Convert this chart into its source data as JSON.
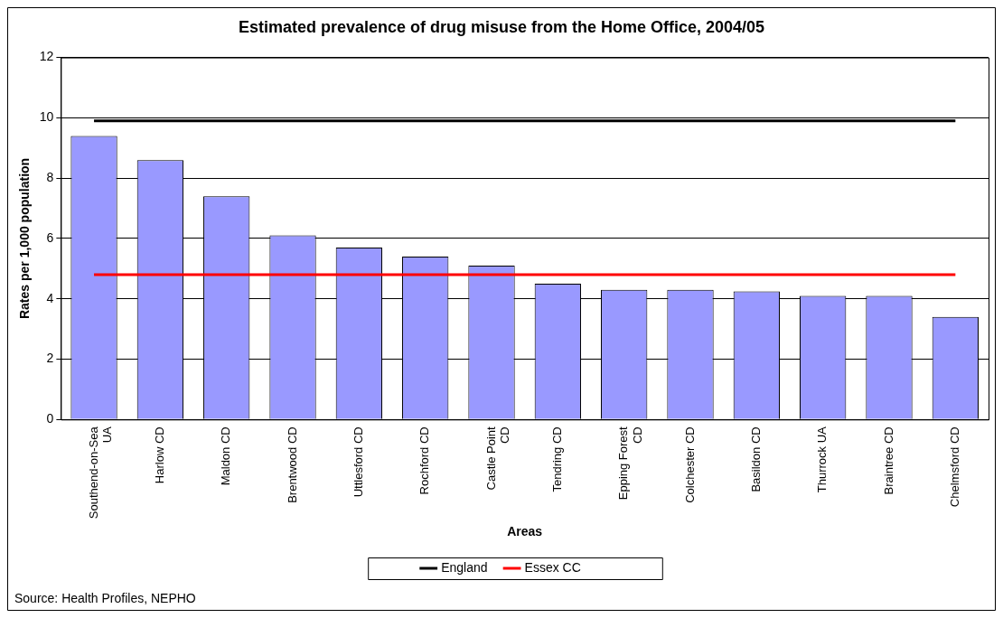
{
  "chart_data": {
    "type": "bar",
    "title": "Estimated prevalence of drug misuse from the Home Office, 2004/05",
    "xlabel": "Areas",
    "ylabel": "Rates per 1,000 population",
    "categories": [
      "Southend-on-Sea UA",
      "Harlow CD",
      "Maldon CD",
      "Brentwood CD",
      "Uttlesford CD",
      "Rochford CD",
      "Castle Point CD",
      "Tendring CD",
      "Epping Forest CD",
      "Colchester CD",
      "Basildon CD",
      "Thurrock UA",
      "Braintree CD",
      "Chelmsford CD"
    ],
    "series": [
      {
        "color": "#9999ff",
        "values": [
          9.4,
          8.6,
          7.4,
          6.1,
          5.7,
          5.4,
          5.1,
          4.5,
          4.3,
          4.3,
          4.25,
          4.1,
          4.1,
          3.4
        ]
      },
      {
        "type": "line",
        "name": "England",
        "color": "#000000",
        "values": [
          9.9,
          9.9,
          9.9,
          9.9,
          9.9,
          9.9,
          9.9,
          9.9,
          9.9,
          9.9,
          9.9,
          9.9,
          9.9,
          9.9
        ]
      },
      {
        "type": "line",
        "name": "Essex CC",
        "color": "#ff0000",
        "values": [
          4.8,
          4.8,
          4.8,
          4.8,
          4.8,
          4.8,
          4.8,
          4.8,
          4.8,
          4.8,
          4.8,
          4.8,
          4.8,
          4.8
        ]
      }
    ],
    "ylim": [
      0,
      12
    ],
    "yticks": [
      0,
      2,
      4,
      6,
      8,
      10,
      12
    ],
    "grid": "y",
    "legend": "bottom",
    "marker": "none",
    "annotations": [
      "Source: Health Profiles, NEPHO"
    ]
  }
}
